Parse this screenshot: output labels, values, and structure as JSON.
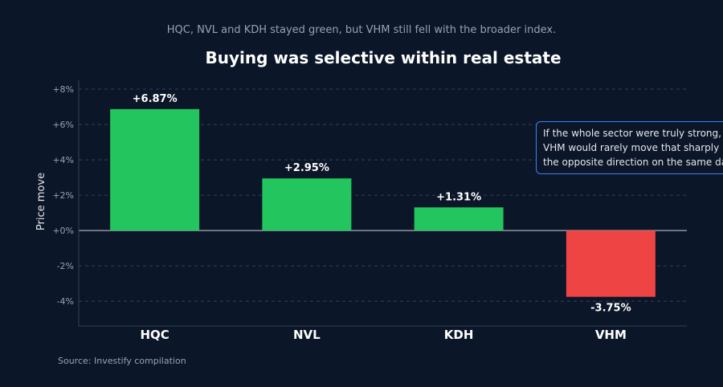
{
  "chart_data": {
    "type": "bar",
    "title": "Buying was selective within real estate",
    "subtitle": "HQC, NVL and KDH stayed green, but VHM still fell with the broader index.",
    "ylabel": "Price move",
    "xlabel": "",
    "categories": [
      "HQC",
      "NVL",
      "KDH",
      "VHM"
    ],
    "values": [
      6.87,
      2.95,
      1.31,
      -3.75
    ],
    "value_labels": [
      "+6.87%",
      "+2.95%",
      "+1.31%",
      "-3.75%"
    ],
    "ylim": [
      -5.4,
      8.5
    ],
    "yticks": [
      8,
      6,
      4,
      2,
      0,
      -2,
      -4
    ],
    "ytick_labels": [
      "+8%",
      "+6%",
      "+4%",
      "+2%",
      "+0%",
      "-2%",
      "-4%"
    ],
    "grid": true,
    "colors": {
      "positive": "#22c55e",
      "negative": "#ef4444",
      "background": "#0b1628",
      "annotation_border": "#3b82f6"
    },
    "annotation": "If the whole sector were truly strong, VHM would rarely move that sharply in the opposite direction on the same day.",
    "source": "Source: Investify compilation"
  }
}
